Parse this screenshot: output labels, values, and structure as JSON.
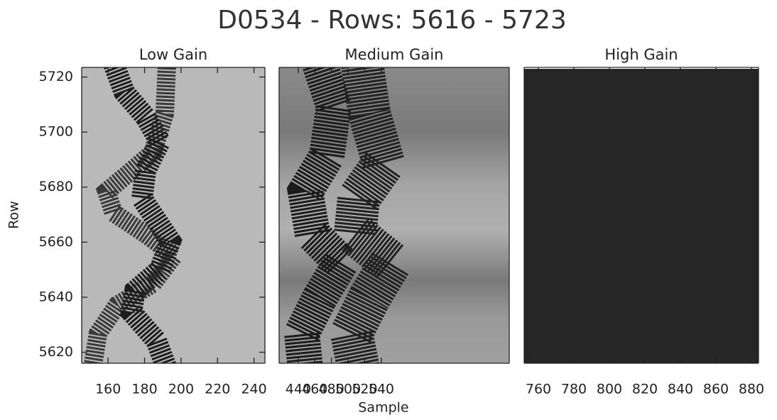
{
  "figure": {
    "title": "D0534 - Rows: 5616 - 5723",
    "xlabel": "Sample",
    "ylabel": "Row"
  },
  "chart_data": [
    {
      "type": "image",
      "title": "Low Gain",
      "xlim": [
        145.5,
        246
      ],
      "xticks": [
        160,
        180,
        200,
        220,
        240
      ],
      "ylim": [
        5616,
        5723.5
      ],
      "yticks": [
        5620,
        5640,
        5660,
        5680,
        5700,
        5720
      ]
    },
    {
      "type": "image",
      "title": "Medium Gain",
      "xlim": [
        417,
        694
      ],
      "xticks": [
        440,
        460,
        480,
        500,
        520,
        540
      ],
      "ylim": [
        5616,
        5723.5
      ]
    },
    {
      "type": "image",
      "title": "High Gain",
      "xlim": [
        752,
        884
      ],
      "xticks": [
        760,
        780,
        800,
        820,
        840,
        860,
        880
      ],
      "ylim": [
        5616,
        5723.5
      ]
    }
  ]
}
